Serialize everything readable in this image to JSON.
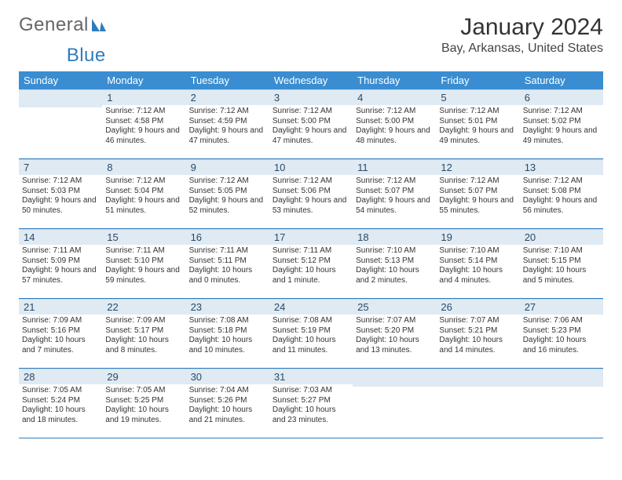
{
  "brand": {
    "part1": "General",
    "part2": "Blue"
  },
  "title": "January 2024",
  "location": "Bay, Arkansas, United States",
  "colors": {
    "header_bg": "#3a8dd0",
    "header_fg": "#ffffff",
    "dayband_bg": "#dfeaf3",
    "rule": "#2f7bbf",
    "brand_blue": "#2f7bbf"
  },
  "weekdays": [
    "Sunday",
    "Monday",
    "Tuesday",
    "Wednesday",
    "Thursday",
    "Friday",
    "Saturday"
  ],
  "weeks": [
    [
      {
        "n": "",
        "sr": "",
        "ss": "",
        "dl": ""
      },
      {
        "n": "1",
        "sr": "Sunrise: 7:12 AM",
        "ss": "Sunset: 4:58 PM",
        "dl": "Daylight: 9 hours and 46 minutes."
      },
      {
        "n": "2",
        "sr": "Sunrise: 7:12 AM",
        "ss": "Sunset: 4:59 PM",
        "dl": "Daylight: 9 hours and 47 minutes."
      },
      {
        "n": "3",
        "sr": "Sunrise: 7:12 AM",
        "ss": "Sunset: 5:00 PM",
        "dl": "Daylight: 9 hours and 47 minutes."
      },
      {
        "n": "4",
        "sr": "Sunrise: 7:12 AM",
        "ss": "Sunset: 5:00 PM",
        "dl": "Daylight: 9 hours and 48 minutes."
      },
      {
        "n": "5",
        "sr": "Sunrise: 7:12 AM",
        "ss": "Sunset: 5:01 PM",
        "dl": "Daylight: 9 hours and 49 minutes."
      },
      {
        "n": "6",
        "sr": "Sunrise: 7:12 AM",
        "ss": "Sunset: 5:02 PM",
        "dl": "Daylight: 9 hours and 49 minutes."
      }
    ],
    [
      {
        "n": "7",
        "sr": "Sunrise: 7:12 AM",
        "ss": "Sunset: 5:03 PM",
        "dl": "Daylight: 9 hours and 50 minutes."
      },
      {
        "n": "8",
        "sr": "Sunrise: 7:12 AM",
        "ss": "Sunset: 5:04 PM",
        "dl": "Daylight: 9 hours and 51 minutes."
      },
      {
        "n": "9",
        "sr": "Sunrise: 7:12 AM",
        "ss": "Sunset: 5:05 PM",
        "dl": "Daylight: 9 hours and 52 minutes."
      },
      {
        "n": "10",
        "sr": "Sunrise: 7:12 AM",
        "ss": "Sunset: 5:06 PM",
        "dl": "Daylight: 9 hours and 53 minutes."
      },
      {
        "n": "11",
        "sr": "Sunrise: 7:12 AM",
        "ss": "Sunset: 5:07 PM",
        "dl": "Daylight: 9 hours and 54 minutes."
      },
      {
        "n": "12",
        "sr": "Sunrise: 7:12 AM",
        "ss": "Sunset: 5:07 PM",
        "dl": "Daylight: 9 hours and 55 minutes."
      },
      {
        "n": "13",
        "sr": "Sunrise: 7:12 AM",
        "ss": "Sunset: 5:08 PM",
        "dl": "Daylight: 9 hours and 56 minutes."
      }
    ],
    [
      {
        "n": "14",
        "sr": "Sunrise: 7:11 AM",
        "ss": "Sunset: 5:09 PM",
        "dl": "Daylight: 9 hours and 57 minutes."
      },
      {
        "n": "15",
        "sr": "Sunrise: 7:11 AM",
        "ss": "Sunset: 5:10 PM",
        "dl": "Daylight: 9 hours and 59 minutes."
      },
      {
        "n": "16",
        "sr": "Sunrise: 7:11 AM",
        "ss": "Sunset: 5:11 PM",
        "dl": "Daylight: 10 hours and 0 minutes."
      },
      {
        "n": "17",
        "sr": "Sunrise: 7:11 AM",
        "ss": "Sunset: 5:12 PM",
        "dl": "Daylight: 10 hours and 1 minute."
      },
      {
        "n": "18",
        "sr": "Sunrise: 7:10 AM",
        "ss": "Sunset: 5:13 PM",
        "dl": "Daylight: 10 hours and 2 minutes."
      },
      {
        "n": "19",
        "sr": "Sunrise: 7:10 AM",
        "ss": "Sunset: 5:14 PM",
        "dl": "Daylight: 10 hours and 4 minutes."
      },
      {
        "n": "20",
        "sr": "Sunrise: 7:10 AM",
        "ss": "Sunset: 5:15 PM",
        "dl": "Daylight: 10 hours and 5 minutes."
      }
    ],
    [
      {
        "n": "21",
        "sr": "Sunrise: 7:09 AM",
        "ss": "Sunset: 5:16 PM",
        "dl": "Daylight: 10 hours and 7 minutes."
      },
      {
        "n": "22",
        "sr": "Sunrise: 7:09 AM",
        "ss": "Sunset: 5:17 PM",
        "dl": "Daylight: 10 hours and 8 minutes."
      },
      {
        "n": "23",
        "sr": "Sunrise: 7:08 AM",
        "ss": "Sunset: 5:18 PM",
        "dl": "Daylight: 10 hours and 10 minutes."
      },
      {
        "n": "24",
        "sr": "Sunrise: 7:08 AM",
        "ss": "Sunset: 5:19 PM",
        "dl": "Daylight: 10 hours and 11 minutes."
      },
      {
        "n": "25",
        "sr": "Sunrise: 7:07 AM",
        "ss": "Sunset: 5:20 PM",
        "dl": "Daylight: 10 hours and 13 minutes."
      },
      {
        "n": "26",
        "sr": "Sunrise: 7:07 AM",
        "ss": "Sunset: 5:21 PM",
        "dl": "Daylight: 10 hours and 14 minutes."
      },
      {
        "n": "27",
        "sr": "Sunrise: 7:06 AM",
        "ss": "Sunset: 5:23 PM",
        "dl": "Daylight: 10 hours and 16 minutes."
      }
    ],
    [
      {
        "n": "28",
        "sr": "Sunrise: 7:05 AM",
        "ss": "Sunset: 5:24 PM",
        "dl": "Daylight: 10 hours and 18 minutes."
      },
      {
        "n": "29",
        "sr": "Sunrise: 7:05 AM",
        "ss": "Sunset: 5:25 PM",
        "dl": "Daylight: 10 hours and 19 minutes."
      },
      {
        "n": "30",
        "sr": "Sunrise: 7:04 AM",
        "ss": "Sunset: 5:26 PM",
        "dl": "Daylight: 10 hours and 21 minutes."
      },
      {
        "n": "31",
        "sr": "Sunrise: 7:03 AM",
        "ss": "Sunset: 5:27 PM",
        "dl": "Daylight: 10 hours and 23 minutes."
      },
      {
        "n": "",
        "sr": "",
        "ss": "",
        "dl": ""
      },
      {
        "n": "",
        "sr": "",
        "ss": "",
        "dl": ""
      },
      {
        "n": "",
        "sr": "",
        "ss": "",
        "dl": ""
      }
    ]
  ]
}
